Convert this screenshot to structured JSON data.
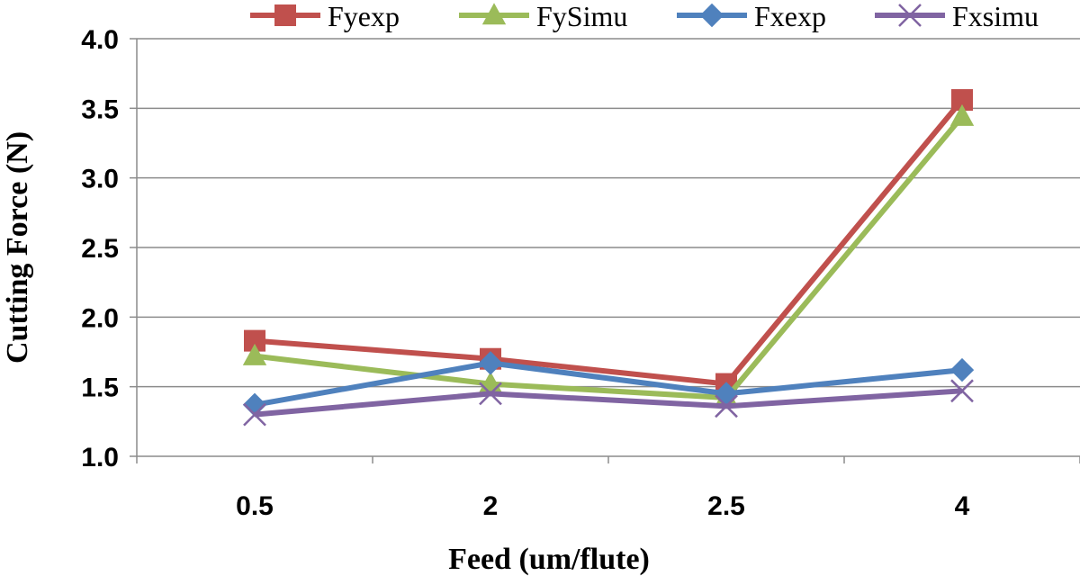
{
  "chart_data": {
    "type": "line",
    "categories": [
      "0.5",
      "2",
      "2.5",
      "4"
    ],
    "series": [
      {
        "name": "Fyexp",
        "color": "#c0504d",
        "marker": "square",
        "values": [
          1.83,
          1.7,
          1.52,
          3.56
        ]
      },
      {
        "name": "FySimu",
        "color": "#9bbb59",
        "marker": "triangle",
        "values": [
          1.72,
          1.52,
          1.42,
          3.44
        ]
      },
      {
        "name": "Fxexp",
        "color": "#4f81bd",
        "marker": "diamond",
        "values": [
          1.37,
          1.67,
          1.45,
          1.62
        ]
      },
      {
        "name": "Fxsimu",
        "color": "#8064a2",
        "marker": "x",
        "values": [
          1.3,
          1.45,
          1.36,
          1.47
        ]
      }
    ],
    "yticks": [
      "1.0",
      "1.5",
      "2.0",
      "2.5",
      "3.0",
      "3.5",
      "4.0"
    ],
    "ylim": [
      1.0,
      4.0
    ],
    "xlabel": "Feed (um/flute)",
    "ylabel": "Cutting Force (N)",
    "grid": true,
    "legend_position": "top"
  }
}
